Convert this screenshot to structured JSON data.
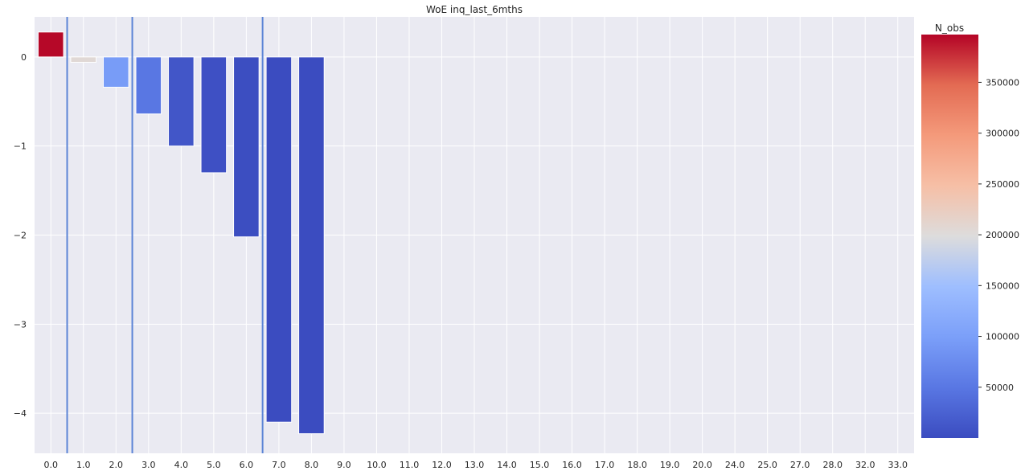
{
  "chart_data": {
    "type": "bar",
    "title": "WoE inq_last_6mths",
    "xlabel": "",
    "ylabel": "",
    "categories": [
      "0.0",
      "1.0",
      "2.0",
      "3.0",
      "4.0",
      "5.0",
      "6.0",
      "7.0",
      "8.0",
      "9.0",
      "10.0",
      "11.0",
      "12.0",
      "13.0",
      "14.0",
      "15.0",
      "16.0",
      "17.0",
      "18.0",
      "19.0",
      "20.0",
      "24.0",
      "25.0",
      "27.0",
      "28.0",
      "32.0",
      "33.0"
    ],
    "values": [
      0.28,
      -0.06,
      -0.34,
      -0.64,
      -1.0,
      -1.3,
      -2.02,
      -4.1,
      -4.23,
      0,
      0,
      0,
      0,
      0,
      0,
      0,
      0,
      0,
      0,
      0,
      0,
      0,
      0,
      0,
      0,
      0,
      0
    ],
    "n_obs": [
      395000,
      205000,
      95000,
      50000,
      12000,
      5000,
      2000,
      500,
      300,
      0,
      0,
      0,
      0,
      0,
      0,
      0,
      0,
      0,
      0,
      0,
      0,
      0,
      0,
      0,
      0,
      0,
      0
    ],
    "split_lines_after_category_index": [
      0,
      2,
      6
    ],
    "ylim": [
      -4.45,
      0.45
    ],
    "yticks": [
      0,
      -1,
      -2,
      -3,
      -4
    ],
    "ytick_labels": [
      "0",
      "−1",
      "−2",
      "−3",
      "−4"
    ],
    "grid": true,
    "colormap": "coolwarm",
    "colorbar": {
      "label": "N_obs",
      "min": 0,
      "max": 397000,
      "ticks": [
        50000,
        100000,
        150000,
        200000,
        250000,
        300000,
        350000
      ],
      "tick_labels": [
        "50000",
        "100000",
        "150000",
        "200000",
        "250000",
        "300000",
        "350000"
      ]
    },
    "colors": {
      "background": "#eaeaf2",
      "grid": "#ffffff",
      "split_line": "#5b84d6"
    }
  }
}
